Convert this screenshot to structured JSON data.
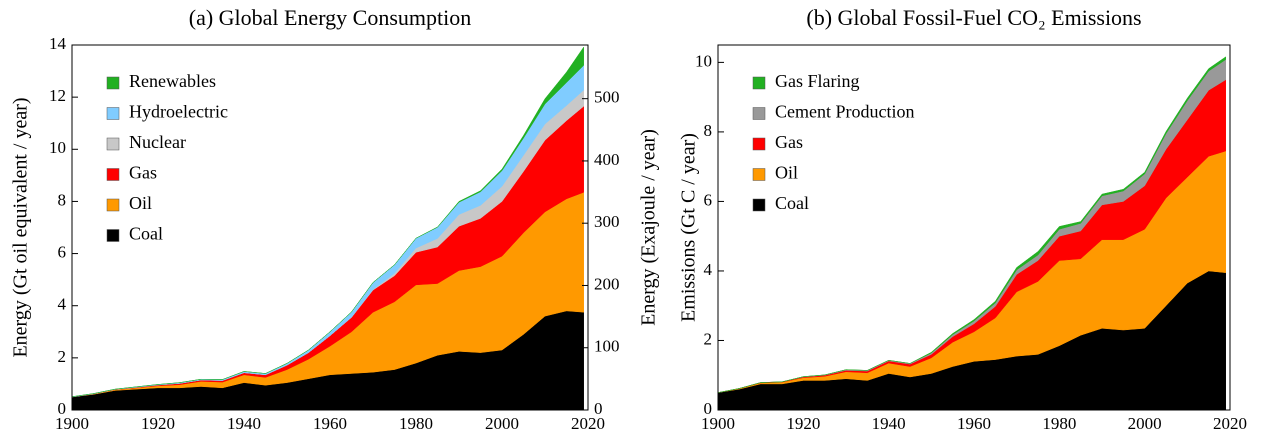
{
  "chart_data": [
    {
      "type": "stacked-area",
      "title": "(a)  Global Energy Consumption",
      "ylabel": "Energy (Gt oil equivalent / year)",
      "y2label": "Energy (Exajoule / year)",
      "x": [
        1900,
        1905,
        1910,
        1915,
        1920,
        1925,
        1930,
        1935,
        1940,
        1945,
        1950,
        1955,
        1960,
        1965,
        1970,
        1975,
        1980,
        1985,
        1990,
        1995,
        2000,
        2005,
        2010,
        2015,
        2019
      ],
      "xlim": [
        1900,
        2020
      ],
      "xticks": [
        1900,
        1920,
        1940,
        1960,
        1980,
        2000,
        2020
      ],
      "ylim": [
        0,
        14
      ],
      "yticks": [
        0,
        2,
        4,
        6,
        8,
        10,
        12,
        14
      ],
      "y2lim": [
        0,
        586.2
      ],
      "y2ticks": [
        0,
        100,
        200,
        300,
        400,
        500
      ],
      "series": [
        {
          "name": "Coal",
          "color": "#000000",
          "values": [
            0.5,
            0.6,
            0.75,
            0.8,
            0.85,
            0.85,
            0.9,
            0.85,
            1.05,
            0.95,
            1.05,
            1.2,
            1.35,
            1.4,
            1.45,
            1.55,
            1.8,
            2.1,
            2.25,
            2.2,
            2.3,
            2.9,
            3.6,
            3.8,
            3.75
          ]
        },
        {
          "name": "Oil",
          "color": "#ff9900",
          "values": [
            0,
            0.02,
            0.03,
            0.05,
            0.08,
            0.12,
            0.2,
            0.22,
            0.3,
            0.3,
            0.5,
            0.75,
            1.1,
            1.6,
            2.3,
            2.6,
            3.0,
            2.75,
            3.1,
            3.3,
            3.6,
            3.9,
            4.0,
            4.3,
            4.6
          ]
        },
        {
          "name": "Gas",
          "color": "#ff0000",
          "values": [
            0,
            0,
            0.01,
            0.02,
            0.03,
            0.05,
            0.05,
            0.06,
            0.08,
            0.1,
            0.17,
            0.25,
            0.4,
            0.55,
            0.85,
            1.0,
            1.25,
            1.4,
            1.7,
            1.85,
            2.1,
            2.35,
            2.75,
            3.0,
            3.3
          ]
        },
        {
          "name": "Nuclear",
          "color": "#c8c8c8",
          "values": [
            0,
            0,
            0,
            0,
            0,
            0,
            0,
            0,
            0,
            0,
            0,
            0,
            0,
            0.01,
            0.02,
            0.09,
            0.16,
            0.33,
            0.45,
            0.5,
            0.58,
            0.62,
            0.62,
            0.58,
            0.62
          ]
        },
        {
          "name": "Hydroelectric",
          "color": "#80ccff",
          "values": [
            0.01,
            0.01,
            0.01,
            0.02,
            0.02,
            0.03,
            0.03,
            0.04,
            0.05,
            0.05,
            0.07,
            0.1,
            0.15,
            0.2,
            0.27,
            0.33,
            0.38,
            0.43,
            0.47,
            0.52,
            0.6,
            0.66,
            0.77,
            0.88,
            0.95
          ]
        },
        {
          "name": "Renewables",
          "color": "#22b022",
          "values": [
            0,
            0,
            0,
            0,
            0,
            0,
            0,
            0,
            0,
            0,
            0,
            0,
            0,
            0,
            0,
            0,
            0,
            0.01,
            0.03,
            0.04,
            0.06,
            0.1,
            0.2,
            0.4,
            0.7
          ]
        }
      ]
    },
    {
      "type": "stacked-area",
      "title": "(b)  Global Fossil-Fuel CO₂ Emissions",
      "ylabel": "Emissions (Gt C / year)",
      "x": [
        1900,
        1905,
        1910,
        1915,
        1920,
        1925,
        1930,
        1935,
        1940,
        1945,
        1950,
        1955,
        1960,
        1965,
        1970,
        1975,
        1980,
        1985,
        1990,
        1995,
        2000,
        2005,
        2010,
        2015,
        2019
      ],
      "xlim": [
        1900,
        2020
      ],
      "xticks": [
        1900,
        1920,
        1940,
        1960,
        1980,
        2000,
        2020
      ],
      "ylim": [
        0,
        10.5
      ],
      "yticks": [
        0,
        2,
        4,
        6,
        8,
        10
      ],
      "series": [
        {
          "name": "Coal",
          "color": "#000000",
          "values": [
            0.5,
            0.6,
            0.75,
            0.75,
            0.85,
            0.85,
            0.9,
            0.85,
            1.05,
            0.95,
            1.05,
            1.25,
            1.4,
            1.45,
            1.55,
            1.6,
            1.85,
            2.15,
            2.35,
            2.3,
            2.35,
            3.0,
            3.65,
            4.0,
            3.95
          ]
        },
        {
          "name": "Oil",
          "color": "#ff9900",
          "values": [
            0,
            0.02,
            0.03,
            0.05,
            0.08,
            0.12,
            0.2,
            0.22,
            0.3,
            0.3,
            0.45,
            0.7,
            0.85,
            1.2,
            1.85,
            2.1,
            2.45,
            2.2,
            2.55,
            2.6,
            2.85,
            3.1,
            3.05,
            3.3,
            3.5
          ]
        },
        {
          "name": "Gas",
          "color": "#ff0000",
          "values": [
            0,
            0,
            0.01,
            0.01,
            0.02,
            0.03,
            0.04,
            0.05,
            0.06,
            0.07,
            0.1,
            0.16,
            0.23,
            0.33,
            0.5,
            0.6,
            0.7,
            0.8,
            1.0,
            1.1,
            1.25,
            1.4,
            1.65,
            1.9,
            2.05
          ]
        },
        {
          "name": "Cement Production",
          "color": "#999999",
          "values": [
            0,
            0,
            0,
            0,
            0.01,
            0.01,
            0.02,
            0.02,
            0.02,
            0.02,
            0.04,
            0.06,
            0.08,
            0.1,
            0.13,
            0.16,
            0.2,
            0.22,
            0.26,
            0.3,
            0.34,
            0.45,
            0.55,
            0.55,
            0.58
          ]
        },
        {
          "name": "Gas Flaring",
          "color": "#22b022",
          "values": [
            0,
            0,
            0,
            0,
            0,
            0,
            0,
            0,
            0,
            0,
            0.02,
            0.03,
            0.04,
            0.05,
            0.07,
            0.1,
            0.08,
            0.05,
            0.05,
            0.05,
            0.05,
            0.06,
            0.07,
            0.07,
            0.08
          ]
        }
      ]
    }
  ]
}
